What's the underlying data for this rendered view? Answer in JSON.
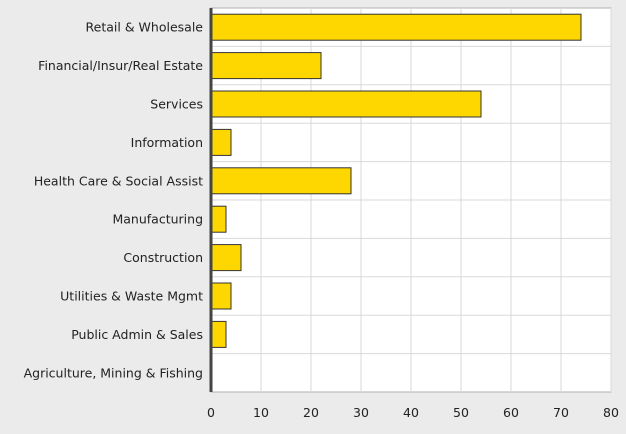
{
  "chart_data": {
    "type": "bar",
    "orientation": "horizontal",
    "categories": [
      "Retail & Wholesale",
      "Financial/Insur/Real Estate",
      "Services",
      "Information",
      "Health Care & Social Assist",
      "Manufacturing",
      "Construction",
      "Utilities & Waste Mgmt",
      "Public Admin & Sales",
      "Agriculture, Mining & Fishing"
    ],
    "values": [
      74,
      22,
      54,
      4,
      28,
      3,
      6,
      4,
      3,
      0
    ],
    "xlim": [
      0,
      80
    ],
    "xticks": [
      0,
      10,
      20,
      30,
      40,
      50,
      60,
      70,
      80
    ],
    "title": "",
    "xlabel": "",
    "ylabel": "",
    "grid": true,
    "legend": "none",
    "bar_color": "#ffd700",
    "bar_edge_color": "#333333",
    "plot_background": "#ffffff",
    "page_background": "#ebebeb"
  }
}
